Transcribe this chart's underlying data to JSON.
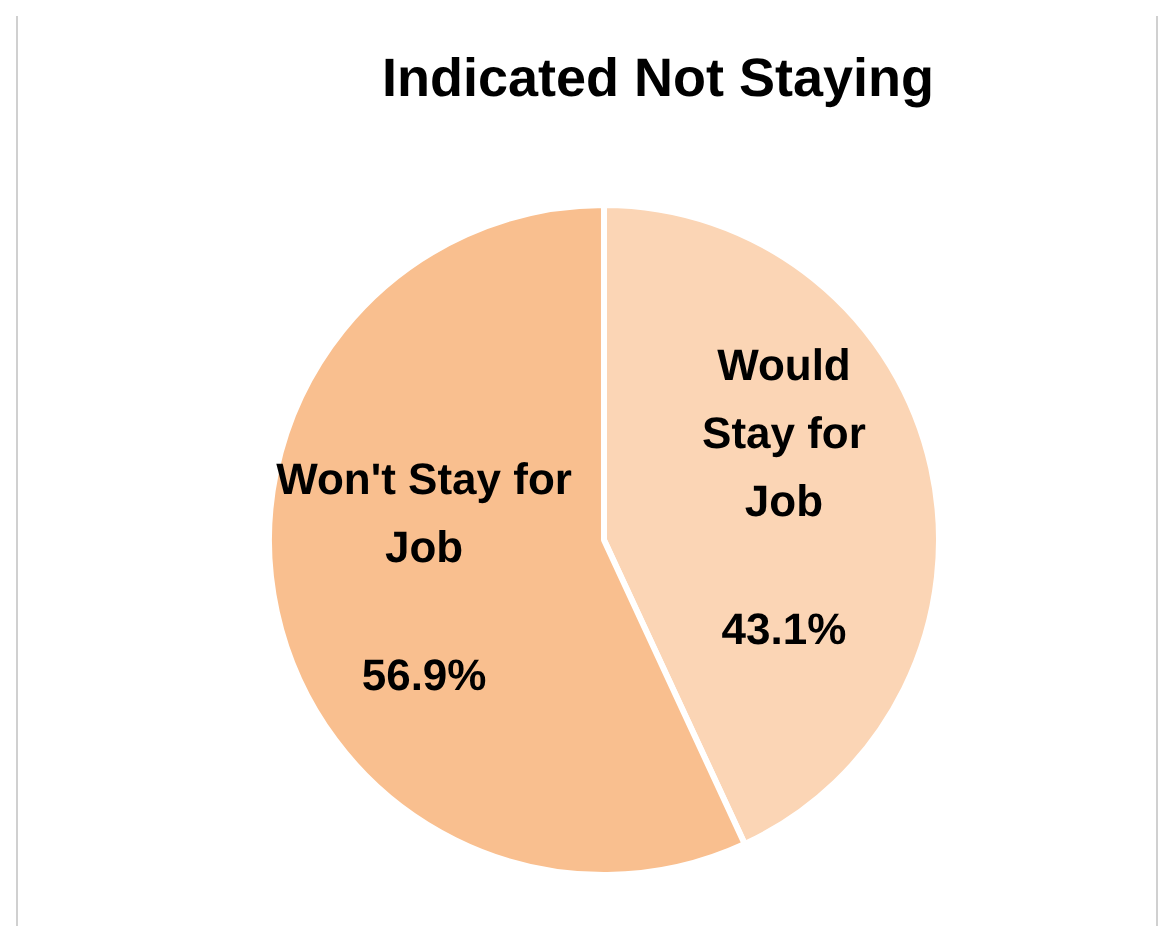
{
  "chart_data": {
    "type": "pie",
    "title": "Indicated Not Staying",
    "categories": [
      "Would Stay for Job",
      "Won't Stay for Job"
    ],
    "values": [
      43.1,
      56.9
    ],
    "value_labels": [
      "43.1%",
      "56.9%"
    ],
    "colors": [
      "#fbd5b5",
      "#f9bf8f"
    ],
    "legend": false
  }
}
